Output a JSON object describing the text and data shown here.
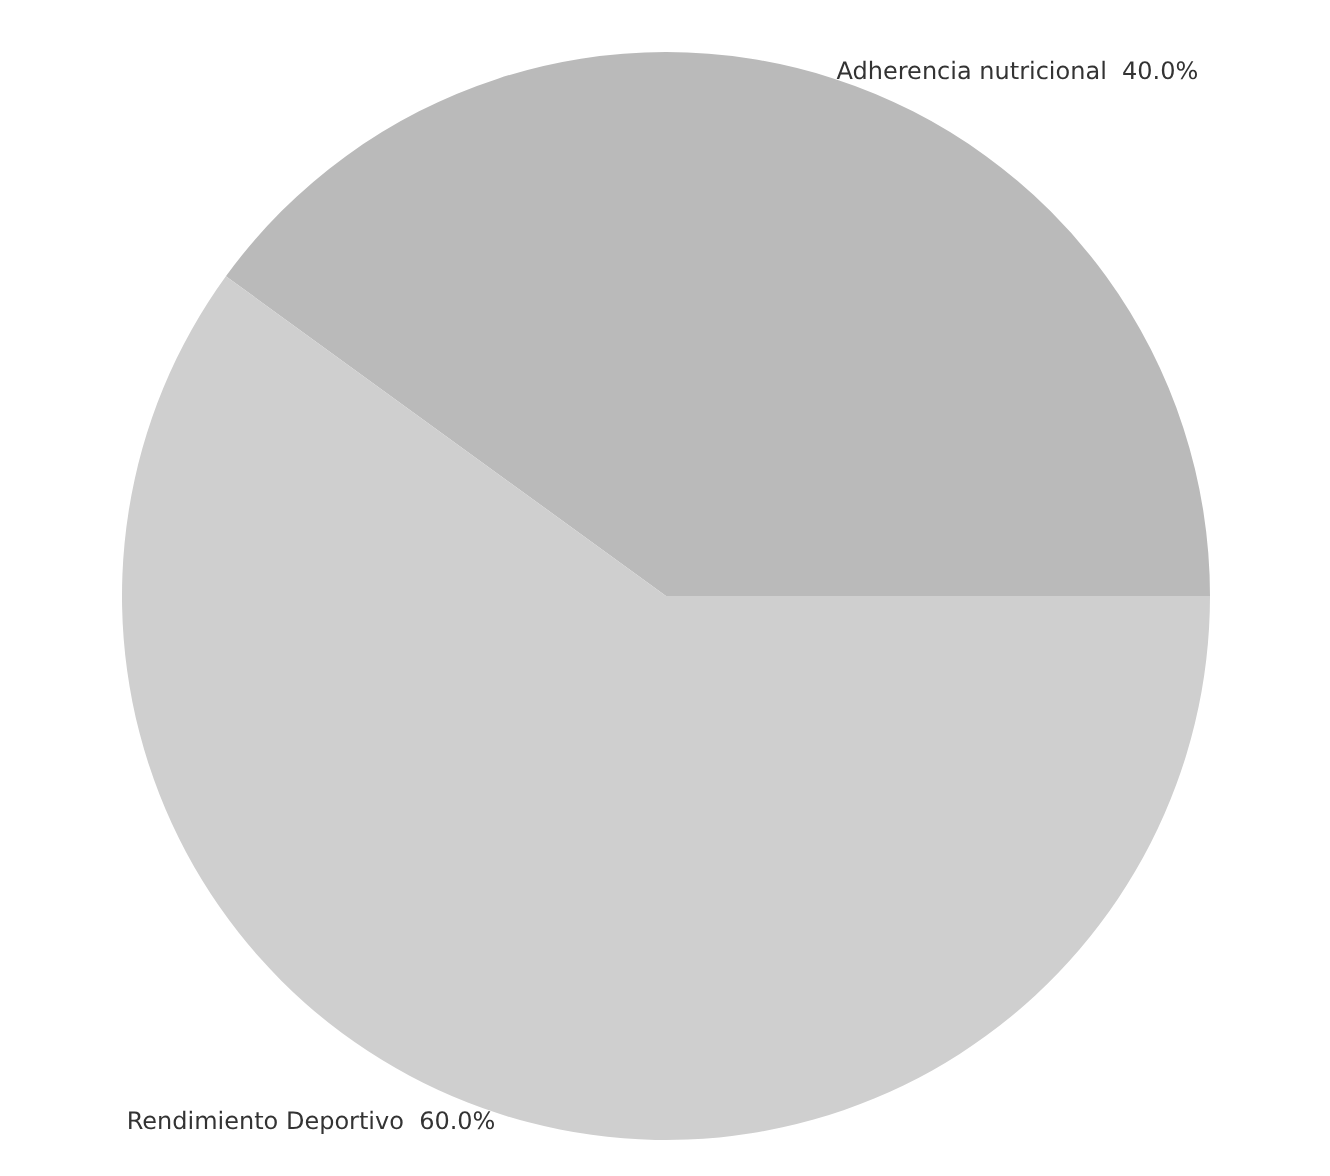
{
  "chart_data": {
    "type": "pie",
    "categories": [
      "Adherencia nutricional",
      "Rendimiento Deportivo"
    ],
    "values": [
      40,
      60
    ],
    "colors": [
      "#bababa",
      "#cfcfcf"
    ],
    "value_labels": [
      "40.0%",
      "60.0%"
    ],
    "legend": false
  }
}
